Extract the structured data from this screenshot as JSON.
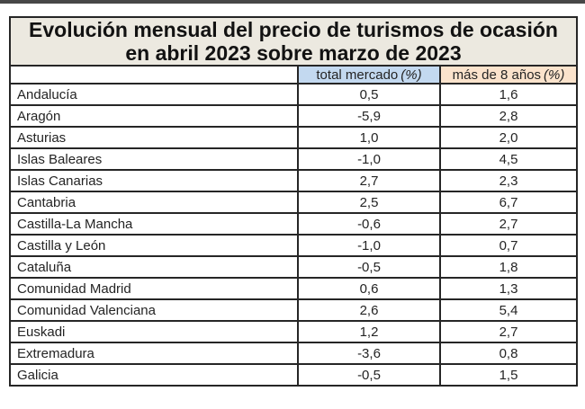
{
  "colors": {
    "top_line": "#474747",
    "border": "#262626",
    "title_bg": "#ece9e0",
    "header_blue": "#c3d9f0",
    "header_tan": "#fbe3cc",
    "text": "#1d1d1d"
  },
  "title": {
    "line1": "Evolución mensual del precio de turismos de ocasión",
    "line2": "en abril 2023 sobre marzo de 2023"
  },
  "table": {
    "columns": [
      {
        "label": "total mercado",
        "unit": "(%)"
      },
      {
        "label": "más de 8 años",
        "unit": "(%)"
      }
    ],
    "rows": [
      {
        "region": "Andalucía",
        "total_mercado": "0,5",
        "mas_de_8": "1,6"
      },
      {
        "region": "Aragón",
        "total_mercado": "-5,9",
        "mas_de_8": "2,8"
      },
      {
        "region": "Asturias",
        "total_mercado": "1,0",
        "mas_de_8": "2,0"
      },
      {
        "region": "Islas Baleares",
        "total_mercado": "-1,0",
        "mas_de_8": "4,5"
      },
      {
        "region": "Islas Canarias",
        "total_mercado": "2,7",
        "mas_de_8": "2,3"
      },
      {
        "region": "Cantabria",
        "total_mercado": "2,5",
        "mas_de_8": "6,7"
      },
      {
        "region": "Castilla-La Mancha",
        "total_mercado": "-0,6",
        "mas_de_8": "2,7"
      },
      {
        "region": "Castilla y León",
        "total_mercado": "-1,0",
        "mas_de_8": "0,7"
      },
      {
        "region": "Cataluña",
        "total_mercado": "-0,5",
        "mas_de_8": "1,8"
      },
      {
        "region": "Comunidad Madrid",
        "total_mercado": "0,6",
        "mas_de_8": "1,3"
      },
      {
        "region": "Comunidad Valenciana",
        "total_mercado": "2,6",
        "mas_de_8": "5,4"
      },
      {
        "region": "Euskadi",
        "total_mercado": "1,2",
        "mas_de_8": "2,7"
      },
      {
        "region": "Extremadura",
        "total_mercado": "-3,6",
        "mas_de_8": "0,8"
      },
      {
        "region": "Galicia",
        "total_mercado": "-0,5",
        "mas_de_8": "1,5"
      }
    ]
  },
  "chart_data": {
    "type": "table",
    "title": "Evolución mensual del precio de turismos de ocasión en abril 2023 sobre marzo de 2023",
    "categories": [
      "Andalucía",
      "Aragón",
      "Asturias",
      "Islas Baleares",
      "Islas Canarias",
      "Cantabria",
      "Castilla-La Mancha",
      "Castilla y León",
      "Cataluña",
      "Comunidad Madrid",
      "Comunidad Valenciana",
      "Euskadi",
      "Extremadura",
      "Galicia"
    ],
    "series": [
      {
        "name": "total mercado (%)",
        "values": [
          0.5,
          -5.9,
          1.0,
          -1.0,
          2.7,
          2.5,
          -0.6,
          -1.0,
          -0.5,
          0.6,
          2.6,
          1.2,
          -3.6,
          -0.5
        ]
      },
      {
        "name": "más de 8 años (%)",
        "values": [
          1.6,
          2.8,
          2.0,
          4.5,
          2.3,
          6.7,
          2.7,
          0.7,
          1.8,
          1.3,
          5.4,
          2.7,
          0.8,
          1.5
        ]
      }
    ]
  }
}
